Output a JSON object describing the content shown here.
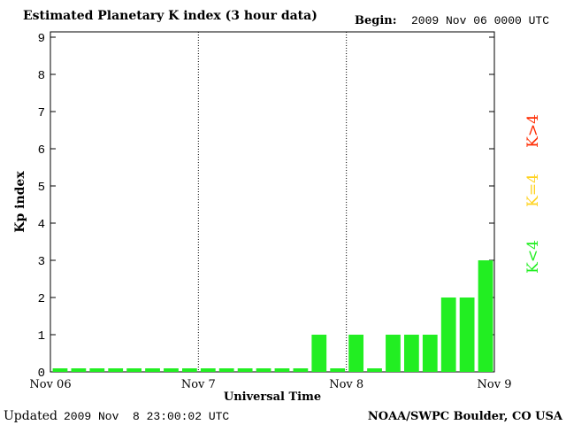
{
  "header": {
    "title": "Estimated Planetary K index (3 hour data)",
    "begin_label": "Begin:",
    "begin_value": "2009 Nov 06 0000 UTC"
  },
  "footer": {
    "updated_label": "Updated",
    "updated_value": "2009 Nov  8 23:00:02 UTC",
    "source": "NOAA/SWPC Boulder, CO USA"
  },
  "legend": {
    "high": "K>4",
    "mid": "K=4",
    "low": "K<4",
    "high_color": "#ff2a00",
    "mid_color": "#ffd21e",
    "low_color": "#22ee22"
  },
  "chart_data": {
    "type": "bar",
    "ylabel": "Kp index",
    "xlabel": "Universal Time",
    "ylim": [
      0,
      9
    ],
    "yticks": [
      0,
      1,
      2,
      3,
      4,
      5,
      6,
      7,
      8,
      9
    ],
    "xtick_labels": [
      "Nov 06",
      "Nov 7",
      "Nov 8",
      "Nov 9"
    ],
    "day_dividers": [
      "Nov 7",
      "Nov 8"
    ],
    "bar_color": "#22ee22",
    "values": [
      0,
      0,
      0,
      0,
      0,
      0,
      0,
      0,
      0,
      0,
      0,
      0,
      0,
      0,
      1,
      0,
      1,
      0,
      1,
      1,
      1,
      2,
      2,
      3
    ]
  }
}
